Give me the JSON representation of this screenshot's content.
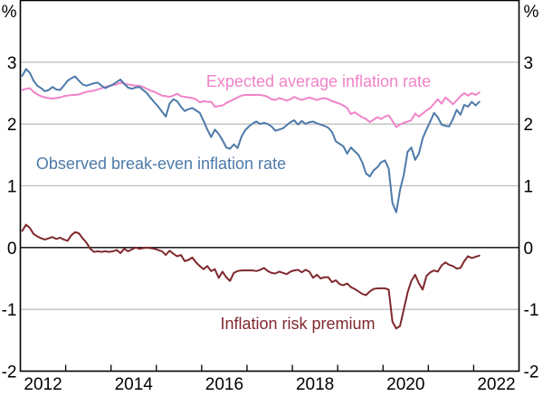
{
  "chart_data": {
    "type": "line",
    "unit_label": "%",
    "x_start_year": 2012,
    "x_step_months": 1,
    "x_axis": {
      "min": 2012,
      "max": 2023,
      "tick_years": [
        2013,
        2014,
        2015,
        2016,
        2017,
        2018,
        2019,
        2020,
        2021,
        2022
      ],
      "label_years": [
        "2012",
        "2014",
        "2016",
        "2018",
        "2020",
        "2022"
      ]
    },
    "y_axis": {
      "min": -2,
      "max": 4,
      "tick_labels": [
        "3",
        "2",
        "1",
        "0",
        "-1",
        "-2"
      ],
      "tick_values": [
        3,
        2,
        1,
        0,
        -1,
        -2
      ],
      "gridline_values": [
        3,
        2,
        1,
        -1
      ],
      "zero_line": 0,
      "grid_on": true
    },
    "colors": {
      "axis": "#000000",
      "grid": "#b3b3b3",
      "background": "#ffffff"
    },
    "legend_position": "inline-annotations",
    "series": [
      {
        "name": "Expected average inflation rate",
        "color": "#f083c9",
        "values": [
          2.55,
          2.57,
          2.58,
          2.52,
          2.48,
          2.45,
          2.43,
          2.42,
          2.41,
          2.42,
          2.43,
          2.45,
          2.46,
          2.47,
          2.47,
          2.48,
          2.5,
          2.52,
          2.53,
          2.54,
          2.56,
          2.58,
          2.6,
          2.62,
          2.63,
          2.64,
          2.67,
          2.65,
          2.64,
          2.63,
          2.62,
          2.62,
          2.6,
          2.57,
          2.54,
          2.52,
          2.49,
          2.46,
          2.45,
          2.44,
          2.46,
          2.49,
          2.45,
          2.44,
          2.43,
          2.42,
          2.4,
          2.35,
          2.37,
          2.36,
          2.36,
          2.28,
          2.29,
          2.3,
          2.34,
          2.37,
          2.4,
          2.43,
          2.46,
          2.47,
          2.47,
          2.47,
          2.47,
          2.47,
          2.46,
          2.44,
          2.4,
          2.39,
          2.42,
          2.4,
          2.38,
          2.4,
          2.44,
          2.41,
          2.39,
          2.41,
          2.43,
          2.41,
          2.39,
          2.41,
          2.42,
          2.4,
          2.37,
          2.35,
          2.33,
          2.3,
          2.26,
          2.16,
          2.19,
          2.15,
          2.11,
          2.08,
          2.03,
          2.07,
          2.11,
          2.08,
          2.12,
          2.14,
          2.05,
          1.95,
          1.99,
          2.02,
          2.04,
          2.06,
          2.17,
          2.12,
          2.17,
          2.22,
          2.26,
          2.33,
          2.4,
          2.33,
          2.43,
          2.38,
          2.32,
          2.38,
          2.45,
          2.5,
          2.46,
          2.5,
          2.47,
          2.51
        ]
      },
      {
        "name": "Observed break-even inflation rate",
        "color": "#4d7aa9",
        "values": [
          2.78,
          2.89,
          2.83,
          2.7,
          2.62,
          2.58,
          2.53,
          2.55,
          2.6,
          2.56,
          2.55,
          2.62,
          2.7,
          2.74,
          2.77,
          2.7,
          2.64,
          2.62,
          2.64,
          2.66,
          2.67,
          2.62,
          2.58,
          2.61,
          2.64,
          2.68,
          2.72,
          2.65,
          2.59,
          2.57,
          2.59,
          2.6,
          2.55,
          2.5,
          2.42,
          2.35,
          2.28,
          2.2,
          2.12,
          2.33,
          2.4,
          2.37,
          2.28,
          2.21,
          2.24,
          2.26,
          2.22,
          2.18,
          2.05,
          1.91,
          1.79,
          1.91,
          1.84,
          1.74,
          1.62,
          1.6,
          1.67,
          1.61,
          1.79,
          1.9,
          1.96,
          2.01,
          2.04,
          2.0,
          2.02,
          2.0,
          1.96,
          1.89,
          1.91,
          1.93,
          1.98,
          2.03,
          2.06,
          1.99,
          2.05,
          2.0,
          2.03,
          2.04,
          2.01,
          1.99,
          1.97,
          1.94,
          1.87,
          1.72,
          1.68,
          1.64,
          1.52,
          1.62,
          1.56,
          1.5,
          1.38,
          1.2,
          1.15,
          1.25,
          1.3,
          1.38,
          1.41,
          1.28,
          0.72,
          0.57,
          0.93,
          1.18,
          1.55,
          1.62,
          1.42,
          1.52,
          1.77,
          1.91,
          2.04,
          2.18,
          2.11,
          1.99,
          1.97,
          1.96,
          2.08,
          2.23,
          2.15,
          2.31,
          2.28,
          2.36,
          2.3,
          2.36
        ]
      },
      {
        "name": "Inflation risk premium",
        "color": "#7f282d",
        "values": [
          0.27,
          0.37,
          0.32,
          0.22,
          0.18,
          0.15,
          0.13,
          0.15,
          0.17,
          0.14,
          0.16,
          0.13,
          0.11,
          0.2,
          0.25,
          0.23,
          0.15,
          0.08,
          -0.02,
          -0.07,
          -0.06,
          -0.07,
          -0.06,
          -0.07,
          -0.06,
          -0.04,
          -0.09,
          -0.02,
          -0.06,
          -0.03,
          0.0,
          -0.02,
          -0.01,
          0.0,
          -0.01,
          -0.02,
          -0.04,
          -0.06,
          -0.12,
          -0.05,
          -0.1,
          -0.14,
          -0.12,
          -0.22,
          -0.2,
          -0.16,
          -0.24,
          -0.3,
          -0.35,
          -0.3,
          -0.38,
          -0.35,
          -0.49,
          -0.39,
          -0.48,
          -0.54,
          -0.41,
          -0.38,
          -0.37,
          -0.37,
          -0.37,
          -0.37,
          -0.38,
          -0.36,
          -0.33,
          -0.38,
          -0.41,
          -0.42,
          -0.39,
          -0.41,
          -0.43,
          -0.39,
          -0.37,
          -0.36,
          -0.4,
          -0.36,
          -0.39,
          -0.49,
          -0.44,
          -0.5,
          -0.48,
          -0.48,
          -0.56,
          -0.53,
          -0.59,
          -0.61,
          -0.58,
          -0.64,
          -0.67,
          -0.71,
          -0.75,
          -0.77,
          -0.71,
          -0.67,
          -0.66,
          -0.66,
          -0.66,
          -0.68,
          -1.2,
          -1.31,
          -1.27,
          -1.0,
          -0.73,
          -0.54,
          -0.44,
          -0.58,
          -0.68,
          -0.46,
          -0.4,
          -0.37,
          -0.39,
          -0.29,
          -0.24,
          -0.28,
          -0.3,
          -0.34,
          -0.33,
          -0.22,
          -0.14,
          -0.17,
          -0.15,
          -0.13
        ]
      }
    ]
  }
}
